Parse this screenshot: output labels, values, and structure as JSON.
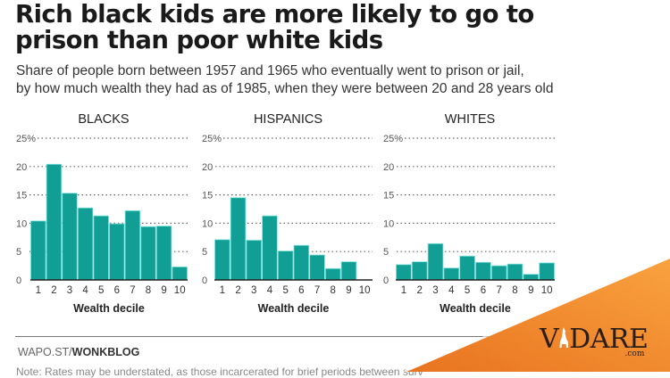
{
  "header": {
    "title_line1": "Rich black kids are more likely to go to",
    "title_line2": "prison than poor white kids",
    "subtitle_line1": "Share of people born between 1957 and 1965 who eventually went to prison or jail,",
    "subtitle_line2": "by how much wealth they had as of 1985, when they were between 20 and 28 years old"
  },
  "footer": {
    "source_prefix": "WAPO.ST/",
    "source_bold": "WONKBLOG",
    "note": "Note: Rates may be understated, as those incarcerated for brief periods between surv"
  },
  "watermark": {
    "brand_left": "V",
    "brand_right": "DARE",
    "brand_suffix": ".com",
    "icon": "dog-silhouette-icon",
    "accent_color": "#f28a2e"
  },
  "colors": {
    "bar_fill": "#119e94",
    "bar_edge": "#7fe3de",
    "grid": "#666666",
    "axis": "#222222"
  },
  "chart_data": [
    {
      "type": "bar",
      "title": "BLACKS",
      "xlabel": "Wealth decile",
      "ylabel": "",
      "categories": [
        "1",
        "2",
        "3",
        "4",
        "5",
        "6",
        "7",
        "8",
        "9",
        "10"
      ],
      "values": [
        10.4,
        20.4,
        15.3,
        12.7,
        11.3,
        9.9,
        12.2,
        9.4,
        9.5,
        2.3
      ],
      "ylim": [
        0,
        25
      ],
      "yticks": [
        "0",
        "5",
        "10",
        "15",
        "20",
        "25%"
      ],
      "grid": true,
      "unit": "%"
    },
    {
      "type": "bar",
      "title": "HISPANICS",
      "xlabel": "Wealth decile",
      "ylabel": "",
      "categories": [
        "1",
        "2",
        "3",
        "4",
        "5",
        "6",
        "7",
        "8",
        "9",
        "10"
      ],
      "values": [
        7.1,
        14.5,
        7.0,
        11.3,
        5.1,
        6.1,
        4.4,
        2.0,
        3.2,
        0
      ],
      "ylim": [
        0,
        25
      ],
      "yticks": [
        "0",
        "5",
        "10",
        "15",
        "20",
        "25%"
      ],
      "grid": true,
      "unit": "%"
    },
    {
      "type": "bar",
      "title": "WHITES",
      "xlabel": "Wealth decile",
      "ylabel": "",
      "categories": [
        "1",
        "2",
        "3",
        "4",
        "5",
        "6",
        "7",
        "8",
        "9",
        "10"
      ],
      "values": [
        2.7,
        3.2,
        6.4,
        2.1,
        4.2,
        3.1,
        2.5,
        2.8,
        1.0,
        3.0
      ],
      "ylim": [
        0,
        25
      ],
      "yticks": [
        "0",
        "5",
        "10",
        "15",
        "20",
        "25%"
      ],
      "grid": true,
      "unit": "%"
    }
  ]
}
